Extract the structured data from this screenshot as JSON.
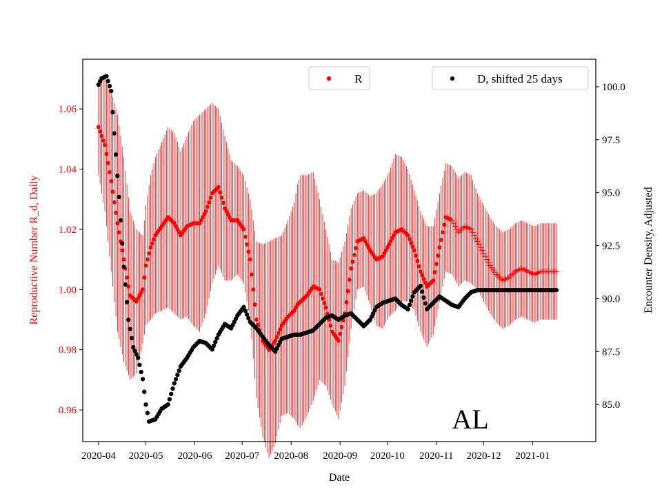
{
  "chart_data": {
    "type": "scatter",
    "xlabel": "Date",
    "y_left_label": "Reproductive Number R_d, Daily",
    "y_right_label": "Encounter Density, Adjusted",
    "annotation": "AL",
    "colors": {
      "r_series": "#ff0000",
      "d_series": "#000000",
      "y_left_axis_text": "#ff0000"
    },
    "x_range_days": [
      -10,
      315
    ],
    "x_ticks": [
      {
        "label": "2020-04",
        "day": 0
      },
      {
        "label": "2020-05",
        "day": 30
      },
      {
        "label": "2020-06",
        "day": 61
      },
      {
        "label": "2020-07",
        "day": 91
      },
      {
        "label": "2020-08",
        "day": 122
      },
      {
        "label": "2020-09",
        "day": 153
      },
      {
        "label": "2020-10",
        "day": 183
      },
      {
        "label": "2020-11",
        "day": 214
      },
      {
        "label": "2020-12",
        "day": 244
      },
      {
        "label": "2021-01",
        "day": 275
      }
    ],
    "y_left": {
      "range": [
        0.9495,
        1.0765
      ],
      "ticks": [
        0.96,
        0.98,
        1.0,
        1.02,
        1.04,
        1.06
      ],
      "tick_labels": [
        "0.96",
        "0.98",
        "1.00",
        "1.02",
        "1.04",
        "1.06"
      ]
    },
    "y_right": {
      "range": [
        83.25,
        101.3
      ],
      "ticks": [
        85.0,
        87.5,
        90.0,
        92.5,
        95.0,
        97.5,
        100.0
      ],
      "tick_labels": [
        "85.0",
        "87.5",
        "90.0",
        "92.5",
        "95.0",
        "97.5",
        "100.0"
      ]
    },
    "series": [
      {
        "name": "R",
        "axis": "left",
        "marker": "circle",
        "error_bars": true,
        "x_start_day": 0,
        "x_end_day": 290,
        "plus_marker_from_day": 224,
        "key_days": [
          0,
          4,
          8,
          12,
          16,
          20,
          24,
          28,
          30,
          33,
          36,
          40,
          44,
          48,
          52,
          56,
          60,
          64,
          68,
          72,
          76,
          80,
          84,
          88,
          92,
          96,
          100,
          104,
          108,
          112,
          116,
          120,
          124,
          126,
          128,
          132,
          136,
          140,
          144,
          148,
          152,
          156,
          160,
          164,
          168,
          172,
          176,
          180,
          184,
          188,
          192,
          196,
          200,
          204,
          208,
          212,
          216,
          220,
          224,
          228,
          232,
          236,
          240,
          244,
          248,
          252,
          256,
          260,
          264,
          268,
          272,
          276,
          280,
          284,
          288,
          290
        ],
        "key_values": [
          1.054,
          1.048,
          1.036,
          1.022,
          1.01,
          0.998,
          0.996,
          1.0,
          1.008,
          1.014,
          1.018,
          1.021,
          1.024,
          1.022,
          1.018,
          1.021,
          1.022,
          1.022,
          1.026,
          1.032,
          1.034,
          1.027,
          1.023,
          1.023,
          1.02,
          1.01,
          0.99,
          0.983,
          0.98,
          0.983,
          0.988,
          0.991,
          0.993,
          0.995,
          0.996,
          0.998,
          1.001,
          1.0,
          0.994,
          0.986,
          0.983,
          0.992,
          1.007,
          1.016,
          1.017,
          1.013,
          1.01,
          1.011,
          1.015,
          1.019,
          1.02,
          1.018,
          1.013,
          1.006,
          1.001,
          1.003,
          1.014,
          1.024,
          1.023,
          1.019,
          1.021,
          1.02,
          1.016,
          1.012,
          1.008,
          1.005,
          1.003,
          1.004,
          1.006,
          1.007,
          1.006,
          1.005,
          1.006,
          1.006,
          1.006,
          1.006
        ],
        "error_key_values": [
          0.016,
          0.022,
          0.03,
          0.036,
          0.034,
          0.028,
          0.024,
          0.018,
          0.02,
          0.024,
          0.026,
          0.028,
          0.03,
          0.03,
          0.028,
          0.03,
          0.034,
          0.036,
          0.034,
          0.03,
          0.026,
          0.024,
          0.02,
          0.018,
          0.018,
          0.02,
          0.026,
          0.032,
          0.036,
          0.034,
          0.03,
          0.032,
          0.036,
          0.04,
          0.042,
          0.04,
          0.038,
          0.03,
          0.026,
          0.024,
          0.026,
          0.024,
          0.02,
          0.016,
          0.016,
          0.018,
          0.022,
          0.024,
          0.024,
          0.026,
          0.024,
          0.022,
          0.02,
          0.02,
          0.02,
          0.018,
          0.018,
          0.018,
          0.018,
          0.018,
          0.018,
          0.018,
          0.016,
          0.016,
          0.016,
          0.016,
          0.016,
          0.016,
          0.016,
          0.016,
          0.016,
          0.016,
          0.016,
          0.016,
          0.016,
          0.016
        ]
      },
      {
        "name": "D, shifted 25 days",
        "axis": "right",
        "marker": "circle",
        "x_start_day": 0,
        "x_end_day": 290,
        "key_days": [
          0,
          2,
          5,
          8,
          10,
          13,
          16,
          19,
          22,
          25,
          28,
          30,
          32,
          36,
          40,
          44,
          48,
          52,
          56,
          60,
          64,
          68,
          72,
          76,
          80,
          84,
          88,
          92,
          96,
          100,
          104,
          108,
          112,
          116,
          120,
          124,
          128,
          132,
          136,
          140,
          144,
          148,
          152,
          156,
          160,
          164,
          168,
          172,
          176,
          180,
          184,
          188,
          192,
          196,
          200,
          204,
          208,
          212,
          216,
          220,
          224,
          228,
          232,
          236,
          240,
          290
        ],
        "key_values": [
          100.1,
          100.4,
          100.5,
          99.8,
          97.8,
          94.8,
          91.5,
          89.0,
          87.7,
          87.2,
          86.2,
          85.0,
          84.2,
          84.3,
          84.8,
          85.0,
          86.0,
          86.8,
          87.2,
          87.7,
          88.0,
          87.9,
          87.6,
          88.3,
          88.8,
          88.6,
          89.2,
          89.6,
          88.9,
          88.6,
          88.2,
          87.8,
          87.5,
          88.1,
          88.2,
          88.3,
          88.3,
          88.4,
          88.5,
          88.8,
          89.1,
          89.2,
          89.0,
          89.2,
          89.3,
          89.0,
          88.7,
          89.0,
          89.6,
          89.8,
          89.9,
          90.0,
          89.7,
          89.5,
          90.3,
          90.6,
          89.5,
          89.8,
          90.1,
          89.9,
          89.7,
          89.6,
          90.0,
          90.3,
          90.4,
          90.4
        ]
      }
    ],
    "legends": [
      {
        "label": "R",
        "series": "R",
        "location": "top-center"
      },
      {
        "label": "D, shifted 25 days",
        "series": "D, shifted 25 days",
        "location": "top-right"
      }
    ]
  }
}
